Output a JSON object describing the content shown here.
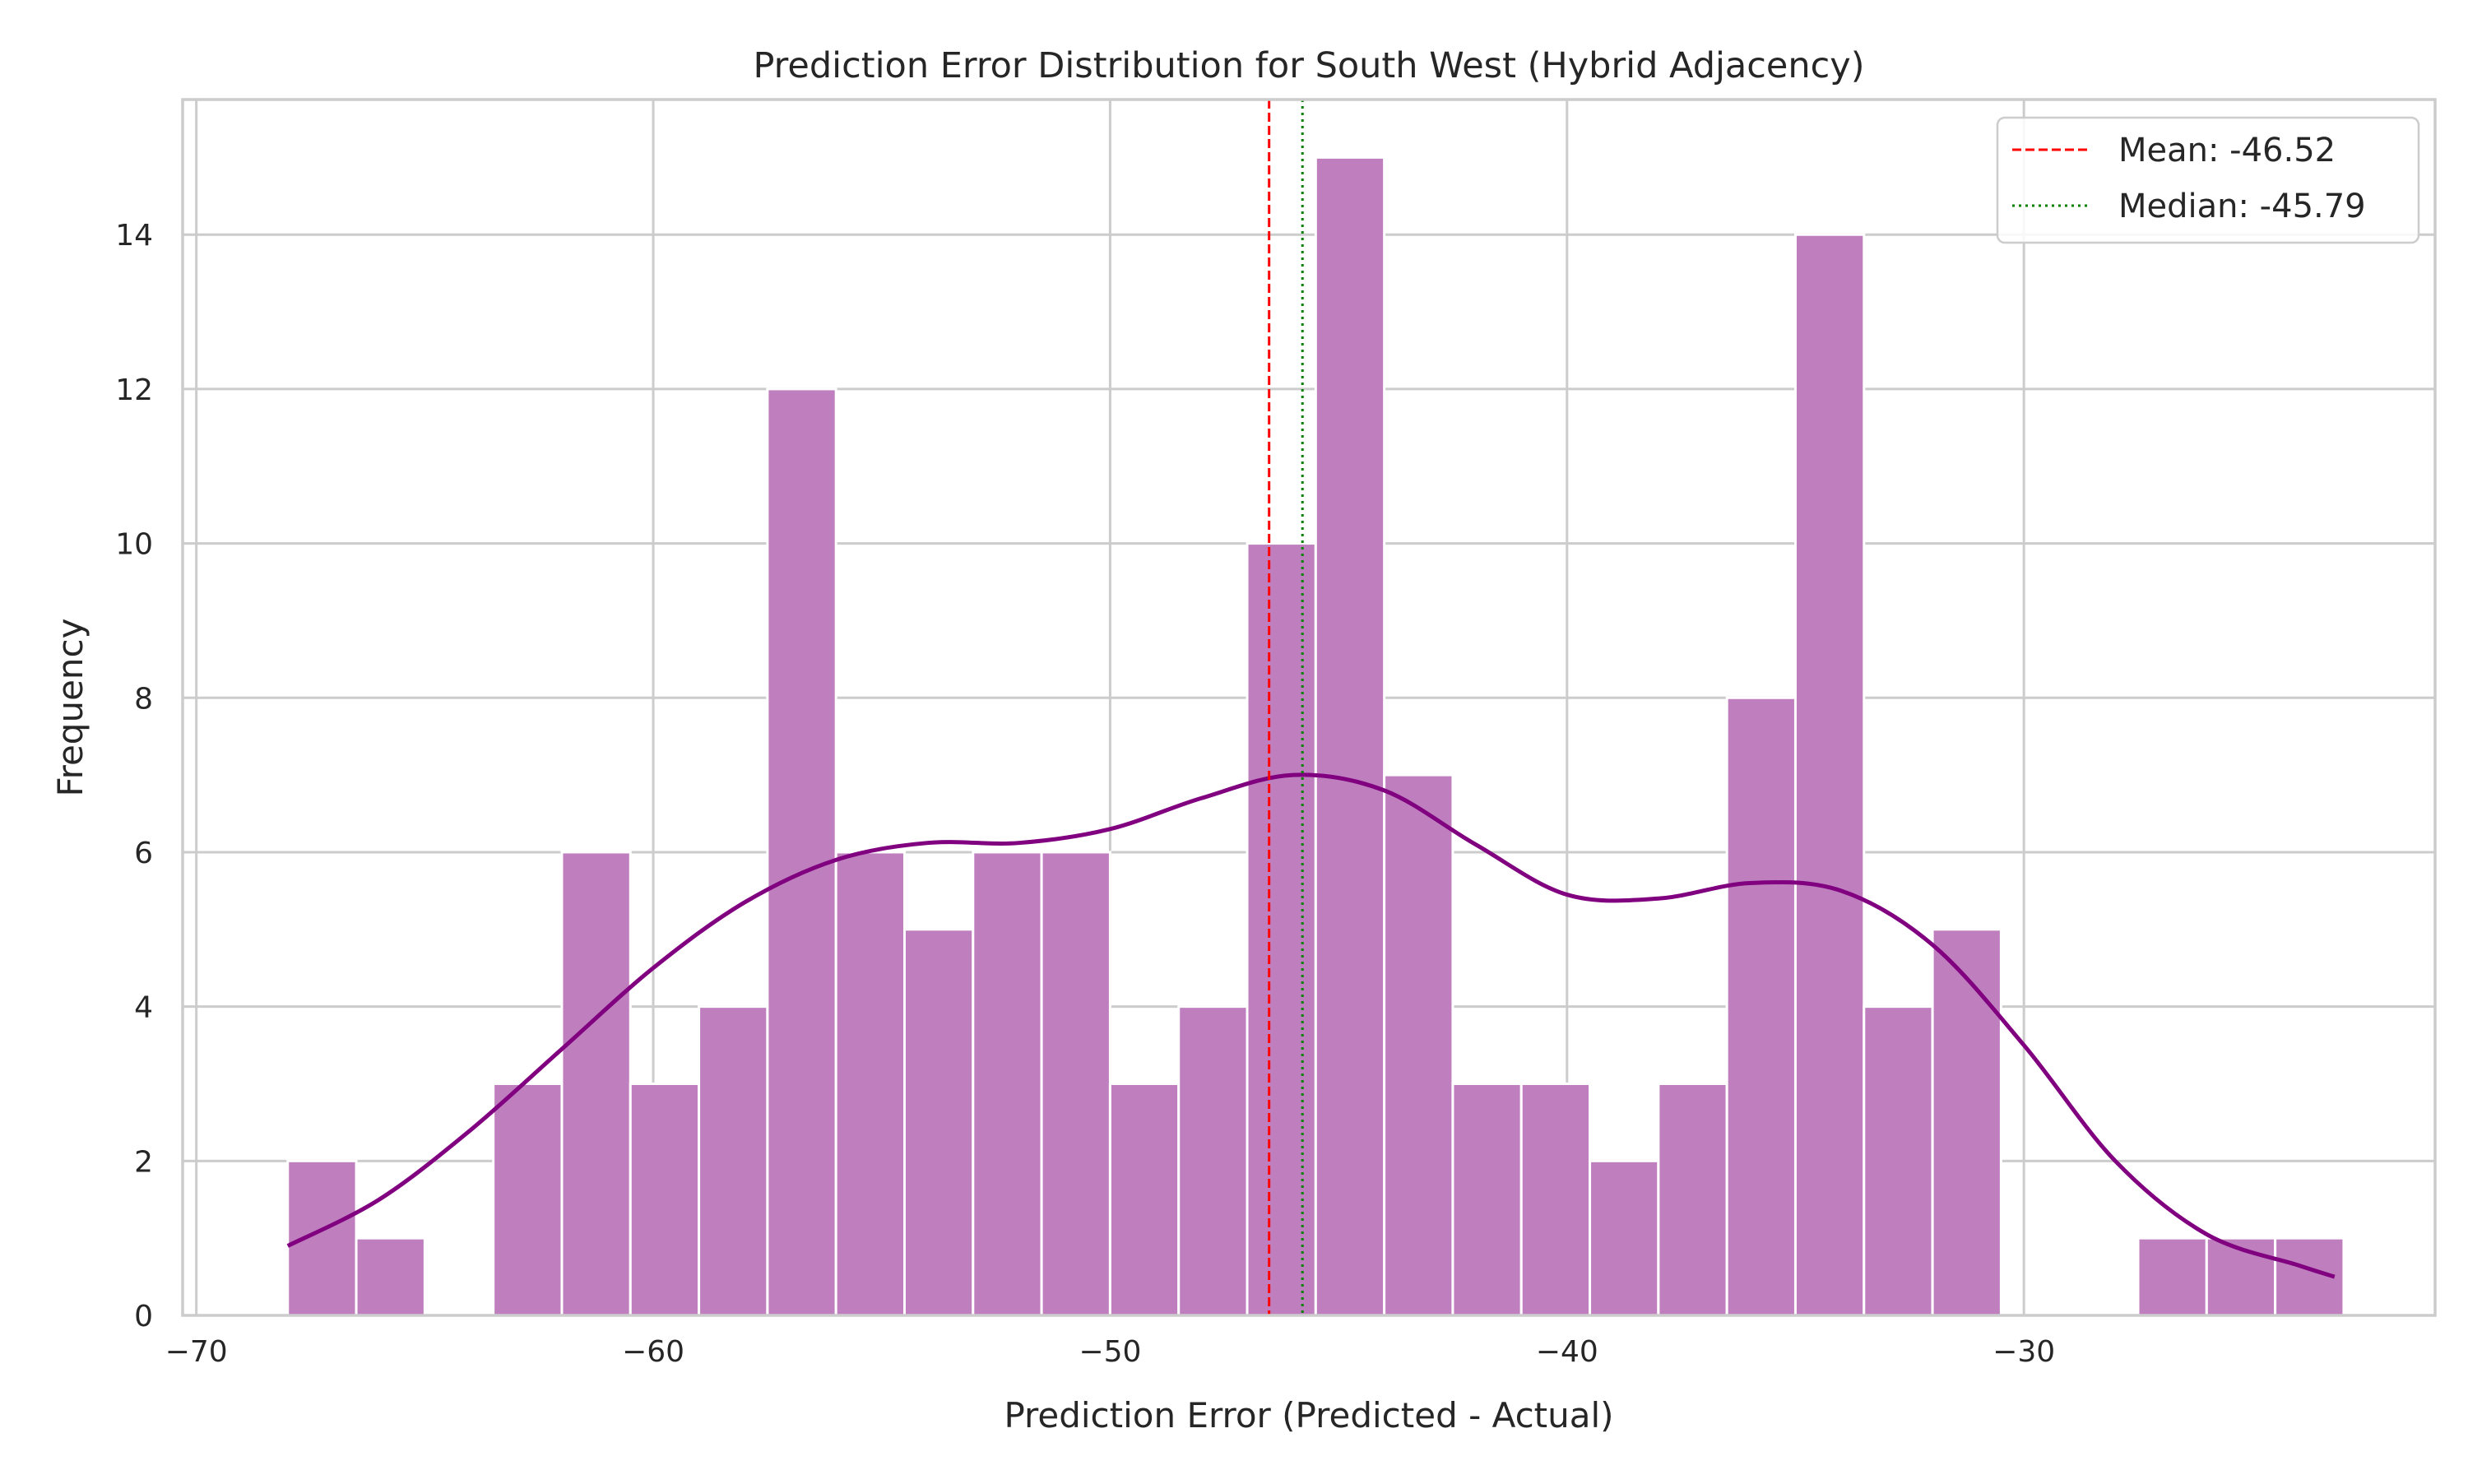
{
  "chart_data": {
    "type": "bar",
    "title": "Prediction Error Distribution for South West (Hybrid Adjacency)",
    "xlabel": "Prediction Error (Predicted - Actual)",
    "ylabel": "Frequency",
    "xlim": [
      -70.3,
      -21
    ],
    "ylim": [
      0,
      15.75
    ],
    "x_ticks": [
      -70,
      -60,
      -50,
      -40,
      -30
    ],
    "x_tick_labels": [
      "−70",
      "−60",
      "−50",
      "−40",
      "−30"
    ],
    "y_ticks": [
      0,
      2,
      4,
      6,
      8,
      10,
      12,
      14
    ],
    "y_tick_labels": [
      "0",
      "2",
      "4",
      "6",
      "8",
      "10",
      "12",
      "14"
    ],
    "grid": true,
    "bins": {
      "start": -68.0,
      "width": 1.5,
      "counts": [
        2,
        1,
        0,
        3,
        6,
        3,
        4,
        12,
        6,
        5,
        6,
        6,
        3,
        4,
        10,
        15,
        7,
        3,
        3,
        2,
        3,
        8,
        14,
        4,
        5,
        0,
        0,
        1,
        1,
        1
      ]
    },
    "kde": {
      "x": [
        -68,
        -66,
        -64,
        -62,
        -60,
        -58,
        -56,
        -54,
        -52,
        -50,
        -48,
        -46,
        -44,
        -42,
        -40,
        -38,
        -36,
        -34,
        -32,
        -30,
        -28,
        -26,
        -24,
        -23.2
      ],
      "y": [
        0.9,
        1.5,
        2.4,
        3.45,
        4.5,
        5.35,
        5.9,
        6.12,
        6.12,
        6.3,
        6.7,
        7.0,
        6.8,
        6.1,
        5.45,
        5.4,
        5.6,
        5.5,
        4.8,
        3.5,
        2.0,
        1.05,
        0.65,
        0.5
      ],
      "color": "#800080"
    },
    "bar_color": "#bf7fbf",
    "reference_lines": [
      {
        "label": "Mean: -46.52",
        "value": -46.52,
        "color": "#ff0000",
        "style": "dashed"
      },
      {
        "label": "Median: -45.79",
        "value": -45.79,
        "color": "#008000",
        "style": "dotted"
      }
    ],
    "legend_position": "top-right"
  }
}
